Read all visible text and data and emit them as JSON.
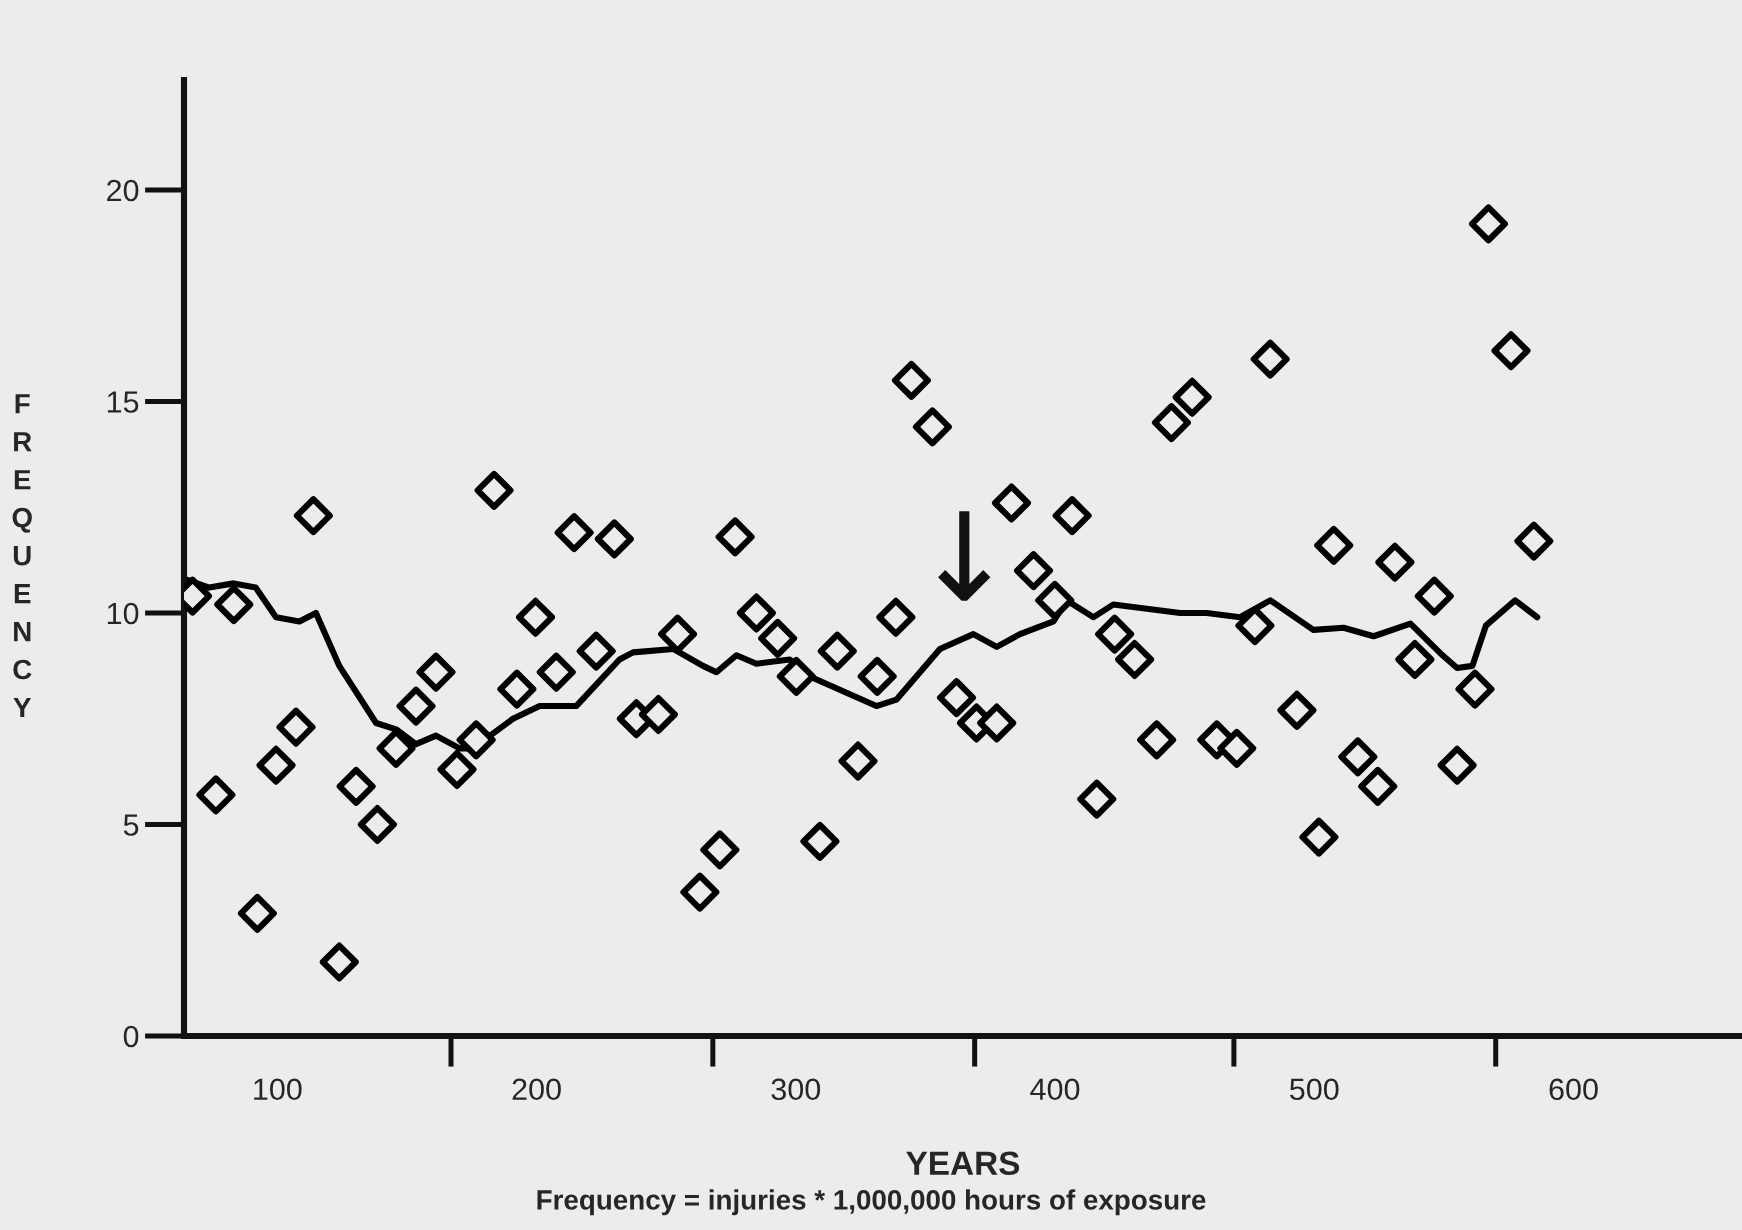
{
  "chart_data": {
    "type": "scatter",
    "xlabel": "YEARS",
    "ylabel": "FREQUENCY",
    "annotations": [
      "Frequency = injuries * 1,000,000 hours of exposure",
      {
        "text": "↓",
        "x": 365,
        "y": 9.7
      }
    ],
    "xlim": [
      64,
      665
    ],
    "ylim": [
      0,
      22.6
    ],
    "xticks": [
      100,
      {
        "value": 167,
        "label": null
      },
      200,
      {
        "value": 268,
        "label": null
      },
      300,
      {
        "value": 369,
        "label": null
      },
      400,
      {
        "value": 469,
        "label": null
      },
      500,
      {
        "value": 570,
        "label": null
      },
      600
    ],
    "yticks": [
      0,
      5,
      10,
      15,
      20
    ],
    "grid": false,
    "legend": false,
    "marker": "diamond",
    "series": [
      {
        "color": "#000000",
        "x": [
          67.3,
          83.2,
          76.3,
          92.3,
          99.5,
          107.2,
          113.9,
          123.9,
          130.4,
          138.6,
          145.8,
          153.5,
          161.2,
          169.3,
          176.7,
          183.6,
          192.4,
          199.6,
          207.6,
          214.5,
          223,
          230,
          238.5,
          247,
          254.4,
          263,
          270.7,
          276.6,
          284.8,
          293,
          300.2,
          309.3,
          316,
          324,
          331.4,
          338.6,
          344.6,
          352.7,
          362,
          369.7,
          377.5,
          383.2,
          391.7,
          399.9,
          406.6,
          416.1,
          423,
          430.7,
          439.2,
          444.9,
          452.9,
          462.4,
          470.1,
          477.1,
          483,
          493.3,
          501.8,
          507.5,
          516.8,
          524.5,
          531.1,
          538.8,
          546.3,
          555.1,
          562,
          567.2,
          575.9,
          584.7
        ],
        "values": [
          10.4,
          10.2,
          5.7,
          2.9,
          6.4,
          7.3,
          12.3,
          1.75,
          5.9,
          5.0,
          6.8,
          7.8,
          8.6,
          6.3,
          7.0,
          12.9,
          8.2,
          9.9,
          8.6,
          11.9,
          9.1,
          11.75,
          7.5,
          7.6,
          9.5,
          3.4,
          4.4,
          11.8,
          10.0,
          9.4,
          8.5,
          4.6,
          9.1,
          6.5,
          8.5,
          9.9,
          15.5,
          14.4,
          8.0,
          7.4,
          7.4,
          12.6,
          11.0,
          10.3,
          12.3,
          5.6,
          9.5,
          8.9,
          7.0,
          14.5,
          15.1,
          7.0,
          6.8,
          9.7,
          16.0,
          7.7,
          4.7,
          11.6,
          6.6,
          5.9,
          11.2,
          8.9,
          10.4,
          6.4,
          8.2,
          19.2,
          16.2,
          11.7
        ]
      },
      {
        "type": "line",
        "color": "#000000",
        "marker": "none",
        "line_style": "solid",
        "x": [
          64.4,
          73.7,
          83.2,
          91.7,
          99.5,
          108.5,
          114.9,
          123.9,
          138.1,
          145.8,
          153.5,
          161.2,
          170.3,
          175.4,
          190.9,
          201.2,
          215.3,
          232,
          237.2,
          252.7,
          264.2,
          269.4,
          277.1,
          284.8,
          297.7,
          305.4,
          331.1,
          338.8,
          355.6,
          368.5,
          377.5,
          386.5,
          399.4,
          404.5,
          414.8,
          422.5,
          435.4,
          448.3,
          458.5,
          471.4,
          483,
          499.7,
          511.3,
          522.9,
          537.1,
          548.6,
          555.1,
          561,
          566.2,
          577.5,
          586
        ],
        "values": [
          10.8,
          10.6,
          10.7,
          10.6,
          9.9,
          9.8,
          10.0,
          8.75,
          7.4,
          7.25,
          6.9,
          7.1,
          6.8,
          6.8,
          7.5,
          7.8,
          7.8,
          8.9,
          9.07,
          9.15,
          8.75,
          8.6,
          9.0,
          8.8,
          8.9,
          8.5,
          7.8,
          7.95,
          9.15,
          9.5,
          9.2,
          9.5,
          9.8,
          10.3,
          9.9,
          10.2,
          10.1,
          10.0,
          10.0,
          9.9,
          10.3,
          9.6,
          9.65,
          9.45,
          9.75,
          9.05,
          8.7,
          8.75,
          9.7,
          10.3,
          9.9
        ]
      }
    ]
  }
}
